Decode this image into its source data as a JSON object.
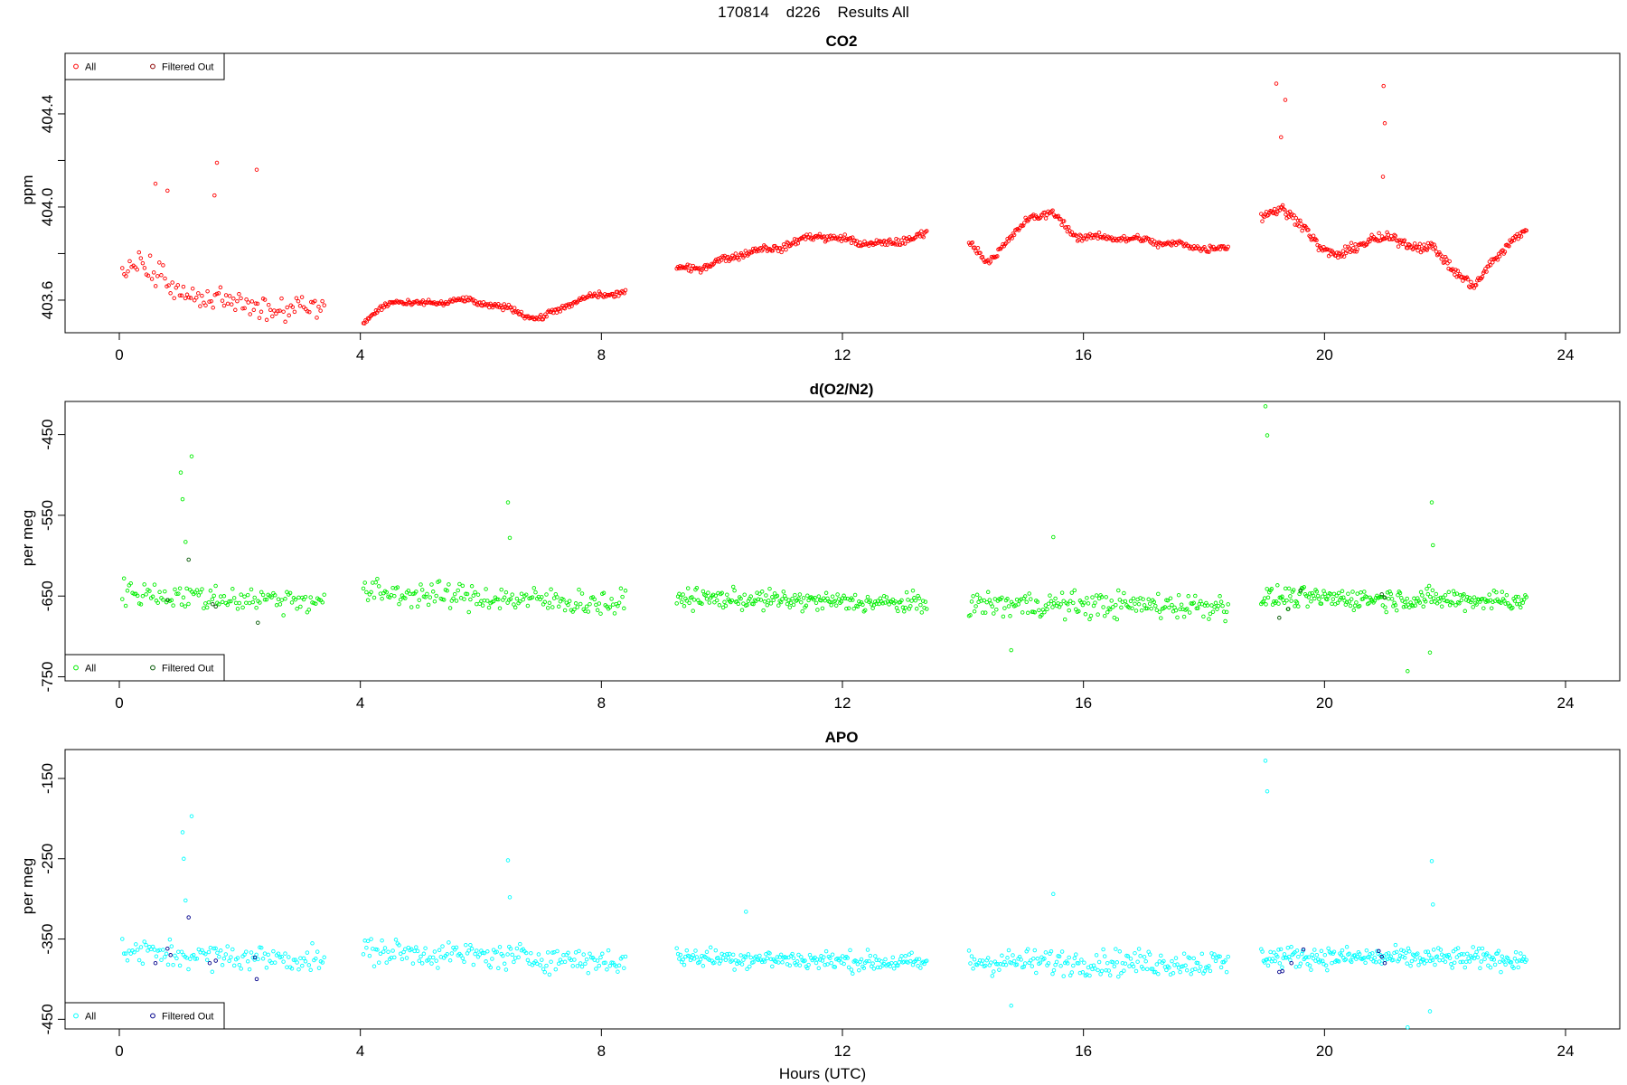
{
  "figure": {
    "title": "170814    d226    Results All",
    "xlabel": "Hours (UTC)"
  },
  "chart_data": [
    {
      "type": "scatter",
      "title": "CO2",
      "xlabel": "Hours (UTC)",
      "ylabel": "ppm",
      "xlim": [
        -0.9,
        24.9
      ],
      "ylim": [
        403.46,
        404.66
      ],
      "xticks": [
        0,
        4,
        8,
        12,
        16,
        20,
        24
      ],
      "yticks": [
        403.6,
        403.8,
        404.0,
        404.2,
        404.4
      ],
      "ytick_labels": [
        "403.6",
        "",
        "404.0",
        "",
        "404.4"
      ],
      "grid": false,
      "legend_position": "top-left",
      "legend": [
        {
          "label": "All",
          "color": "#ff0000"
        },
        {
          "label": "Filtered Out",
          "color": "#8b0000"
        }
      ],
      "colors": {
        "all": "#ff0000",
        "filtered": "#8b0000"
      },
      "spikes": [
        {
          "x": 0.6,
          "y": 404.1
        },
        {
          "x": 0.8,
          "y": 404.07
        },
        {
          "x": 1.58,
          "y": 404.05
        },
        {
          "x": 1.62,
          "y": 404.19
        },
        {
          "x": 2.28,
          "y": 404.16
        },
        {
          "x": 19.2,
          "y": 404.53
        },
        {
          "x": 19.35,
          "y": 404.46
        },
        {
          "x": 19.28,
          "y": 404.3
        },
        {
          "x": 20.98,
          "y": 404.52
        },
        {
          "x": 21.0,
          "y": 404.36
        },
        {
          "x": 20.97,
          "y": 404.13
        }
      ],
      "segments": [
        {
          "x0": 0.05,
          "x1": 3.4,
          "n": 110,
          "anchors": [
            [
              0.05,
              403.72
            ],
            [
              0.5,
              403.76
            ],
            [
              1.0,
              403.62
            ],
            [
              1.6,
              403.6
            ],
            [
              2.1,
              403.58
            ],
            [
              2.5,
              403.56
            ],
            [
              3.0,
              403.58
            ],
            [
              3.4,
              403.56
            ]
          ],
          "noise": 0.05,
          "filtered": []
        },
        {
          "x0": 4.05,
          "x1": 8.4,
          "n": 230,
          "anchors": [
            [
              4.05,
              403.51
            ],
            [
              4.6,
              403.6
            ],
            [
              5.0,
              403.58
            ],
            [
              5.6,
              403.6
            ],
            [
              6.2,
              403.58
            ],
            [
              7.0,
              403.52
            ],
            [
              7.6,
              403.6
            ],
            [
              8.4,
              403.64
            ]
          ],
          "noise": 0.012,
          "filtered": []
        },
        {
          "x0": 9.25,
          "x1": 13.4,
          "n": 230,
          "anchors": [
            [
              9.25,
              403.73
            ],
            [
              9.8,
              403.75
            ],
            [
              10.3,
              403.8
            ],
            [
              11.0,
              403.83
            ],
            [
              11.6,
              403.88
            ],
            [
              12.2,
              403.85
            ],
            [
              12.8,
              403.84
            ],
            [
              13.4,
              403.89
            ]
          ],
          "noise": 0.015,
          "filtered": []
        },
        {
          "x0": 14.1,
          "x1": 18.4,
          "n": 230,
          "anchors": [
            [
              14.1,
              403.84
            ],
            [
              14.4,
              403.77
            ],
            [
              14.8,
              403.86
            ],
            [
              15.1,
              403.96
            ],
            [
              15.5,
              403.97
            ],
            [
              15.9,
              403.87
            ],
            [
              16.5,
              403.87
            ],
            [
              17.2,
              403.85
            ],
            [
              17.8,
              403.83
            ],
            [
              18.4,
              403.82
            ]
          ],
          "noise": 0.015,
          "filtered": []
        },
        {
          "x0": 18.95,
          "x1": 23.35,
          "n": 260,
          "anchors": [
            [
              18.95,
              403.95
            ],
            [
              19.3,
              404.0
            ],
            [
              19.6,
              403.93
            ],
            [
              19.9,
              403.83
            ],
            [
              20.3,
              403.79
            ],
            [
              20.8,
              403.87
            ],
            [
              21.3,
              403.85
            ],
            [
              21.8,
              403.82
            ],
            [
              22.2,
              403.72
            ],
            [
              22.5,
              403.65
            ],
            [
              22.8,
              403.78
            ],
            [
              23.35,
              403.9
            ]
          ],
          "noise": 0.02,
          "filtered": []
        }
      ]
    },
    {
      "type": "scatter",
      "title": "d(O2/N2)",
      "xlabel": "Hours (UTC)",
      "ylabel": "per meg",
      "xlim": [
        -0.9,
        24.9
      ],
      "ylim": [
        -755,
        -409
      ],
      "xticks": [
        0,
        4,
        8,
        12,
        16,
        20,
        24
      ],
      "yticks": [
        -750,
        -650,
        -550,
        -450
      ],
      "ytick_labels": [
        "-750",
        "-650",
        "-550",
        "-450"
      ],
      "grid": false,
      "legend_position": "bottom-left",
      "legend": [
        {
          "label": "All",
          "color": "#00ee00"
        },
        {
          "label": "Filtered Out",
          "color": "#005500"
        }
      ],
      "colors": {
        "all": "#00ee00",
        "filtered": "#005500"
      },
      "spikes": [
        {
          "x": 1.02,
          "y": -497
        },
        {
          "x": 1.2,
          "y": -477
        },
        {
          "x": 1.05,
          "y": -530
        },
        {
          "x": 1.1,
          "y": -583
        },
        {
          "x": 6.45,
          "y": -534
        },
        {
          "x": 6.48,
          "y": -578
        },
        {
          "x": 15.5,
          "y": -577
        },
        {
          "x": 19.02,
          "y": -415
        },
        {
          "x": 19.05,
          "y": -451
        },
        {
          "x": 21.78,
          "y": -534
        },
        {
          "x": 21.8,
          "y": -587
        },
        {
          "x": 21.38,
          "y": -743
        },
        {
          "x": 21.75,
          "y": -720
        },
        {
          "x": 14.8,
          "y": -717
        }
      ],
      "segments": [
        {
          "x0": 0.05,
          "x1": 3.4,
          "n": 120,
          "anchors": [
            [
              0.05,
              -645
            ],
            [
              1.5,
              -652
            ],
            [
              3.4,
              -655
            ]
          ],
          "noise": 16,
          "filtered": [
            [
              0.8,
              -655
            ],
            [
              1.55,
              -660
            ],
            [
              1.6,
              -663
            ],
            [
              2.3,
              -683
            ],
            [
              1.15,
              -605
            ]
          ]
        },
        {
          "x0": 4.05,
          "x1": 8.4,
          "n": 170,
          "anchors": [
            [
              4.05,
              -645
            ],
            [
              8.4,
              -660
            ]
          ],
          "noise": 16,
          "filtered": []
        },
        {
          "x0": 9.25,
          "x1": 13.4,
          "n": 200,
          "anchors": [
            [
              9.25,
              -652
            ],
            [
              13.4,
              -660
            ]
          ],
          "noise": 12,
          "filtered": []
        },
        {
          "x0": 14.1,
          "x1": 18.4,
          "n": 190,
          "anchors": [
            [
              14.1,
              -660
            ],
            [
              18.4,
              -662
            ]
          ],
          "noise": 16,
          "filtered": []
        },
        {
          "x0": 18.95,
          "x1": 23.35,
          "n": 230,
          "anchors": [
            [
              18.95,
              -652
            ],
            [
              23.35,
              -655
            ]
          ],
          "noise": 13,
          "filtered": [
            [
              19.25,
              -677
            ],
            [
              19.4,
              -666
            ],
            [
              19.6,
              -643
            ],
            [
              20.95,
              -648
            ],
            [
              21.0,
              -652
            ]
          ]
        }
      ]
    },
    {
      "type": "scatter",
      "title": "APO",
      "xlabel": "Hours (UTC)",
      "ylabel": "per meg",
      "xlim": [
        -0.9,
        24.9
      ],
      "ylim": [
        -462,
        -114
      ],
      "xticks": [
        0,
        4,
        8,
        12,
        16,
        20,
        24
      ],
      "yticks": [
        -450,
        -350,
        -250,
        -150
      ],
      "ytick_labels": [
        "-450",
        "-350",
        "-250",
        "-150"
      ],
      "grid": false,
      "legend_position": "bottom-left",
      "legend": [
        {
          "label": "All",
          "color": "#00ffff"
        },
        {
          "label": "Filtered Out",
          "color": "#00008b"
        }
      ],
      "colors": {
        "all": "#00ffff",
        "filtered": "#00008b"
      },
      "spikes": [
        {
          "x": 1.05,
          "y": -217
        },
        {
          "x": 1.2,
          "y": -197
        },
        {
          "x": 1.07,
          "y": -250
        },
        {
          "x": 1.1,
          "y": -302
        },
        {
          "x": 6.45,
          "y": -252
        },
        {
          "x": 6.48,
          "y": -298
        },
        {
          "x": 10.4,
          "y": -316
        },
        {
          "x": 15.5,
          "y": -294
        },
        {
          "x": 19.02,
          "y": -128
        },
        {
          "x": 19.05,
          "y": -166
        },
        {
          "x": 21.78,
          "y": -253
        },
        {
          "x": 21.8,
          "y": -307
        },
        {
          "x": 21.38,
          "y": -460
        },
        {
          "x": 21.75,
          "y": -440
        },
        {
          "x": 14.8,
          "y": -433
        }
      ],
      "segments": [
        {
          "x0": 0.05,
          "x1": 3.4,
          "n": 120,
          "anchors": [
            [
              0.05,
              -365
            ],
            [
              1.5,
              -372
            ],
            [
              3.4,
              -375
            ]
          ],
          "noise": 16,
          "filtered": [
            [
              0.6,
              -380
            ],
            [
              0.8,
              -362
            ],
            [
              0.85,
              -370
            ],
            [
              1.15,
              -323
            ],
            [
              1.5,
              -380
            ],
            [
              1.6,
              -377
            ],
            [
              2.25,
              -373
            ],
            [
              2.28,
              -400
            ]
          ]
        },
        {
          "x0": 4.05,
          "x1": 8.4,
          "n": 170,
          "anchors": [
            [
              4.05,
              -365
            ],
            [
              8.4,
              -378
            ]
          ],
          "noise": 16,
          "filtered": []
        },
        {
          "x0": 9.25,
          "x1": 13.4,
          "n": 200,
          "anchors": [
            [
              9.25,
              -372
            ],
            [
              13.4,
              -380
            ]
          ],
          "noise": 12,
          "filtered": []
        },
        {
          "x0": 14.1,
          "x1": 18.4,
          "n": 190,
          "anchors": [
            [
              14.1,
              -378
            ],
            [
              18.4,
              -380
            ]
          ],
          "noise": 16,
          "filtered": []
        },
        {
          "x0": 18.95,
          "x1": 23.35,
          "n": 230,
          "anchors": [
            [
              18.95,
              -372
            ],
            [
              23.35,
              -375
            ]
          ],
          "noise": 13,
          "filtered": [
            [
              19.25,
              -391
            ],
            [
              19.3,
              -390
            ],
            [
              19.45,
              -380
            ],
            [
              19.65,
              -363
            ],
            [
              20.9,
              -365
            ],
            [
              20.95,
              -372
            ],
            [
              21.0,
              -380
            ]
          ]
        }
      ]
    }
  ]
}
